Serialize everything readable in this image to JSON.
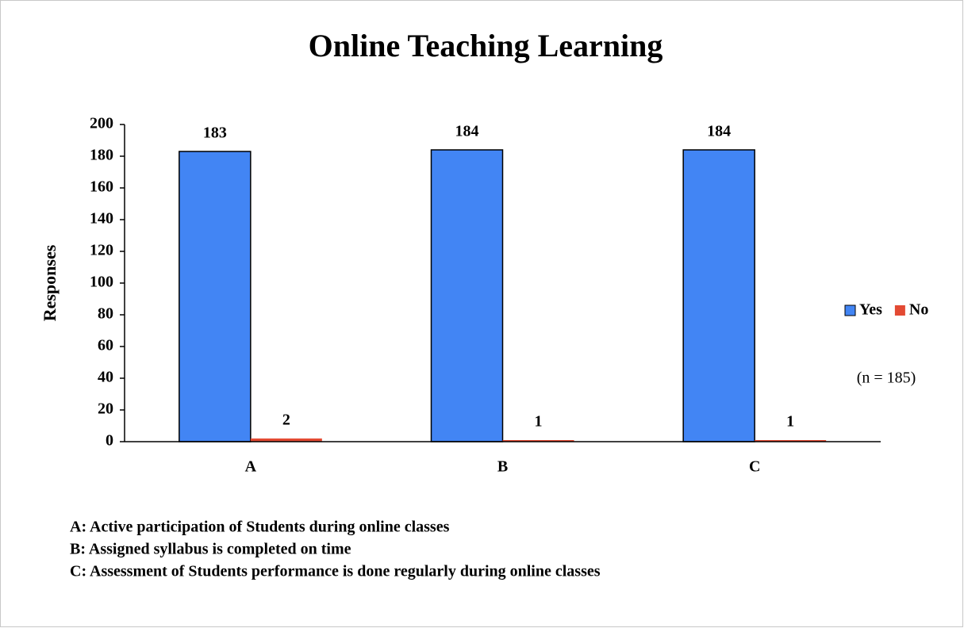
{
  "chart_data": {
    "type": "bar",
    "title": "Online Teaching Learning",
    "y_label": "Responses",
    "categories": [
      "A",
      "B",
      "C"
    ],
    "series": [
      {
        "name": "Yes",
        "color": "#4285f4",
        "values": [
          183,
          184,
          184
        ]
      },
      {
        "name": "No",
        "color": "#e34a33",
        "values": [
          2,
          1,
          1
        ]
      }
    ],
    "ylim": [
      0,
      200
    ],
    "yticks": [
      0,
      20,
      40,
      60,
      80,
      100,
      120,
      140,
      160,
      180,
      200
    ],
    "grid": false,
    "legend": "right",
    "annotation": "(n = 185)",
    "notes": [
      "A: Active participation of  Students during online classes",
      "B: Assigned syllabus is completed on time",
      "C: Assessment of  Students performance is done regularly during online classes"
    ]
  }
}
